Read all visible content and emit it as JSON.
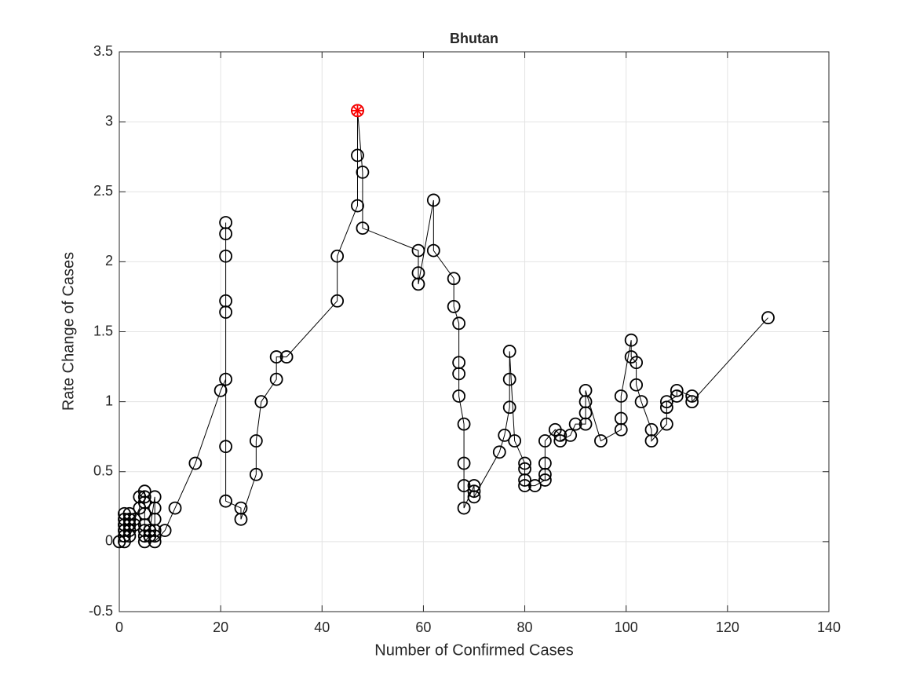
{
  "chart_data": {
    "type": "line",
    "title": "Bhutan",
    "x_label": "Number of Confirmed Cases",
    "y_label": "Rate Change of Cases",
    "xlim": [
      0,
      140
    ],
    "ylim": [
      -0.5,
      3.5
    ],
    "xticks": [
      0,
      20,
      40,
      60,
      80,
      100,
      120,
      140
    ],
    "yticks": [
      -0.5,
      0,
      0.5,
      1,
      1.5,
      2,
      2.5,
      3,
      3.5
    ],
    "grid": true,
    "series": [
      {
        "color": "#000000",
        "x": [
          0,
          1,
          1,
          1,
          1,
          1,
          1,
          2,
          2,
          2,
          2,
          2,
          3,
          3,
          4,
          4,
          5,
          5,
          5,
          5,
          5,
          5,
          5,
          5,
          6,
          6,
          7,
          7,
          7,
          7,
          7,
          7,
          9,
          11,
          15,
          20,
          21,
          21,
          21,
          21,
          21,
          21,
          21,
          21,
          24,
          24,
          27,
          27,
          28,
          31,
          31,
          33,
          43,
          43,
          47,
          47,
          47,
          48,
          48,
          59,
          59,
          59,
          62,
          62,
          66,
          66,
          67,
          67,
          67,
          67,
          68,
          68,
          68,
          68,
          70,
          70,
          70,
          75,
          76,
          77,
          77,
          77,
          78,
          80,
          80,
          80,
          80,
          82,
          84,
          84,
          84,
          84,
          86,
          87,
          87,
          89,
          90,
          92,
          92,
          92,
          92,
          95,
          99,
          99,
          99,
          101,
          101,
          102,
          102,
          103,
          105,
          105,
          108,
          108,
          108,
          110,
          110,
          113,
          113,
          128
        ],
        "values": [
          0,
          0,
          0.04,
          0.08,
          0.12,
          0.16,
          0.2,
          0.2,
          0.16,
          0.12,
          0.08,
          0.04,
          0.12,
          0.16,
          0.24,
          0.32,
          0.36,
          0.32,
          0.28,
          0.2,
          0.12,
          0.08,
          0.04,
          0,
          0.04,
          0.08,
          0.32,
          0.24,
          0.16,
          0.08,
          0.04,
          0,
          0.08,
          0.24,
          0.56,
          1.08,
          1.16,
          1.64,
          1.72,
          2.04,
          2.2,
          2.28,
          0.68,
          0.29,
          0.24,
          0.16,
          0.48,
          0.72,
          1.0,
          1.16,
          1.32,
          1.32,
          1.72,
          2.04,
          2.4,
          2.76,
          3.08,
          2.64,
          2.24,
          2.08,
          1.92,
          1.84,
          2.44,
          2.08,
          1.88,
          1.68,
          1.56,
          1.28,
          1.2,
          1.04,
          0.84,
          0.56,
          0.4,
          0.24,
          0.4,
          0.36,
          0.32,
          0.64,
          0.76,
          0.96,
          1.16,
          1.36,
          0.72,
          0.56,
          0.52,
          0.44,
          0.4,
          0.4,
          0.44,
          0.48,
          0.56,
          0.72,
          0.8,
          0.76,
          0.72,
          0.76,
          0.84,
          0.84,
          0.92,
          1.0,
          1.08,
          0.72,
          0.8,
          0.88,
          1.04,
          1.44,
          1.32,
          1.28,
          1.12,
          1.0,
          0.8,
          0.72,
          0.84,
          0.96,
          1.0,
          1.04,
          1.08,
          1.04,
          1.0,
          1.6
        ]
      }
    ],
    "highlight": {
      "x": 47,
      "y": 3.08,
      "color": "#ff0000"
    }
  }
}
